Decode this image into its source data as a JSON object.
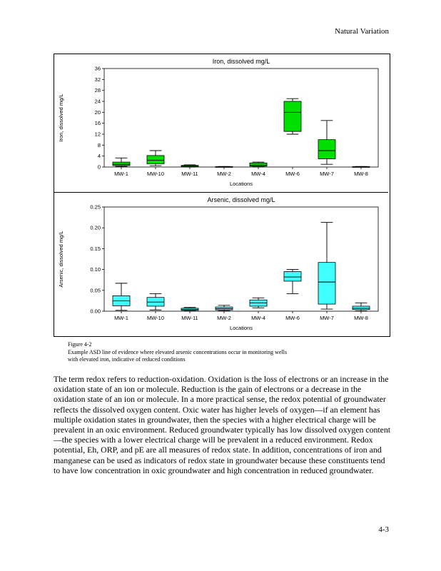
{
  "page": {
    "header": "Natural Variation",
    "page_number": "4-3"
  },
  "figure": {
    "label": "Figure 4-2",
    "caption": "Example ASD line of evidence where elevated arsenic concentrations occur in monitoring wells with elevated iron, indicative of reduced conditions"
  },
  "body": {
    "paragraph": "The term redox refers to reduction-oxidation. Oxidation is the loss of electrons or an increase in the oxidation state of an ion or molecule. Reduction is the gain of electrons or a decrease in the oxidation state of an ion or molecule. In a more practical sense, the redox potential of groundwater reflects the dissolved oxygen content. Oxic water has higher levels of oxygen—if an element has multiple oxidation states in groundwater, then the species with a higher electrical charge will be prevalent in an oxic environment. Reduced groundwater typically has low dissolved oxygen content—the species with a lower electrical charge will be prevalent in a reduced environment. Redox potential, Eh, ORP, and pE are all measures of redox state. In addition, concentrations of iron and manganese can be used as indicators of redox state in groundwater because these constituents tend to have low concentration in oxic groundwater and high concentration in reduced groundwater."
  },
  "chart_data": [
    {
      "type": "box",
      "title": "Iron, dissolved mg/L",
      "ylabel": "Iron, dissolved mg/L",
      "xlabel": "Locations",
      "categories": [
        "MW-1",
        "MW-10",
        "MW-11",
        "MW-2",
        "MW-4",
        "MW-6",
        "MW-7",
        "MW-8"
      ],
      "ylim": [
        0,
        36
      ],
      "ytick_step": 4,
      "ytick_decimals": 0,
      "box_color": "#00e000",
      "grid": false,
      "legend": "none",
      "boxes": [
        {
          "low": 0.2,
          "q1": 0.5,
          "median": 1.0,
          "q3": 1.8,
          "high": 3.3
        },
        {
          "low": 0.5,
          "q1": 1.2,
          "median": 2.5,
          "q3": 4.2,
          "high": 6.0
        },
        {
          "low": 0.0,
          "q1": 0.1,
          "median": 0.3,
          "q3": 0.6,
          "high": 0.8
        },
        {
          "low": 0.0,
          "q1": 0.0,
          "median": 0.05,
          "q3": 0.15,
          "high": 0.2
        },
        {
          "low": 0.1,
          "q1": 0.3,
          "median": 0.7,
          "q3": 1.5,
          "high": 1.8
        },
        {
          "low": 12.0,
          "q1": 13.0,
          "median": 20.0,
          "q3": 24.0,
          "high": 25.0
        },
        {
          "low": 1.0,
          "q1": 3.0,
          "median": 6.0,
          "q3": 10.0,
          "high": 17.0
        },
        {
          "low": 0.0,
          "q1": 0.0,
          "median": 0.05,
          "q3": 0.15,
          "high": 0.2
        }
      ]
    },
    {
      "type": "box",
      "title": "Arsenic, dissolved mg/L",
      "ylabel": "Arsenic, dissolved mg/L",
      "xlabel": "Locations",
      "categories": [
        "MW-1",
        "MW-10",
        "MW-11",
        "MW-2",
        "MW-4",
        "MW-6",
        "MW-7",
        "MW-8"
      ],
      "ylim": [
        0,
        0.25
      ],
      "ytick_step": 0.05,
      "ytick_decimals": 2,
      "box_color": "#40ffff",
      "grid": false,
      "legend": "none",
      "boxes": [
        {
          "low": 0.002,
          "q1": 0.013,
          "median": 0.025,
          "q3": 0.037,
          "high": 0.067
        },
        {
          "low": 0.003,
          "q1": 0.012,
          "median": 0.022,
          "q3": 0.033,
          "high": 0.042
        },
        {
          "low": 0.001,
          "q1": 0.002,
          "median": 0.004,
          "q3": 0.007,
          "high": 0.009
        },
        {
          "low": 0.001,
          "q1": 0.003,
          "median": 0.006,
          "q3": 0.01,
          "high": 0.014
        },
        {
          "low": 0.008,
          "q1": 0.012,
          "median": 0.02,
          "q3": 0.027,
          "high": 0.032
        },
        {
          "low": 0.042,
          "q1": 0.072,
          "median": 0.082,
          "q3": 0.095,
          "high": 0.1
        },
        {
          "low": 0.005,
          "q1": 0.017,
          "median": 0.07,
          "q3": 0.117,
          "high": 0.213
        },
        {
          "low": 0.001,
          "q1": 0.004,
          "median": 0.007,
          "q3": 0.012,
          "high": 0.02
        }
      ]
    }
  ]
}
